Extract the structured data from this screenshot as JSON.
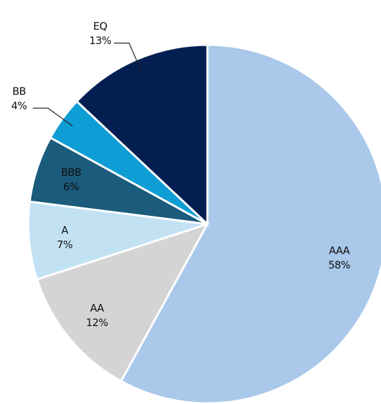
{
  "chart_data": {
    "type": "pie",
    "categories": [
      "AAA",
      "AA",
      "A",
      "BBB",
      "BB",
      "EQ"
    ],
    "values": [
      58,
      12,
      7,
      6,
      4,
      13
    ],
    "value_labels": [
      "58%",
      "12%",
      "7%",
      "6%",
      "4%",
      "13%"
    ],
    "colors": [
      "#a9c8ea",
      "#d4d4d4",
      "#c2e2f4",
      "#1b5b7c",
      "#0e9ed5",
      "#031f52"
    ]
  }
}
